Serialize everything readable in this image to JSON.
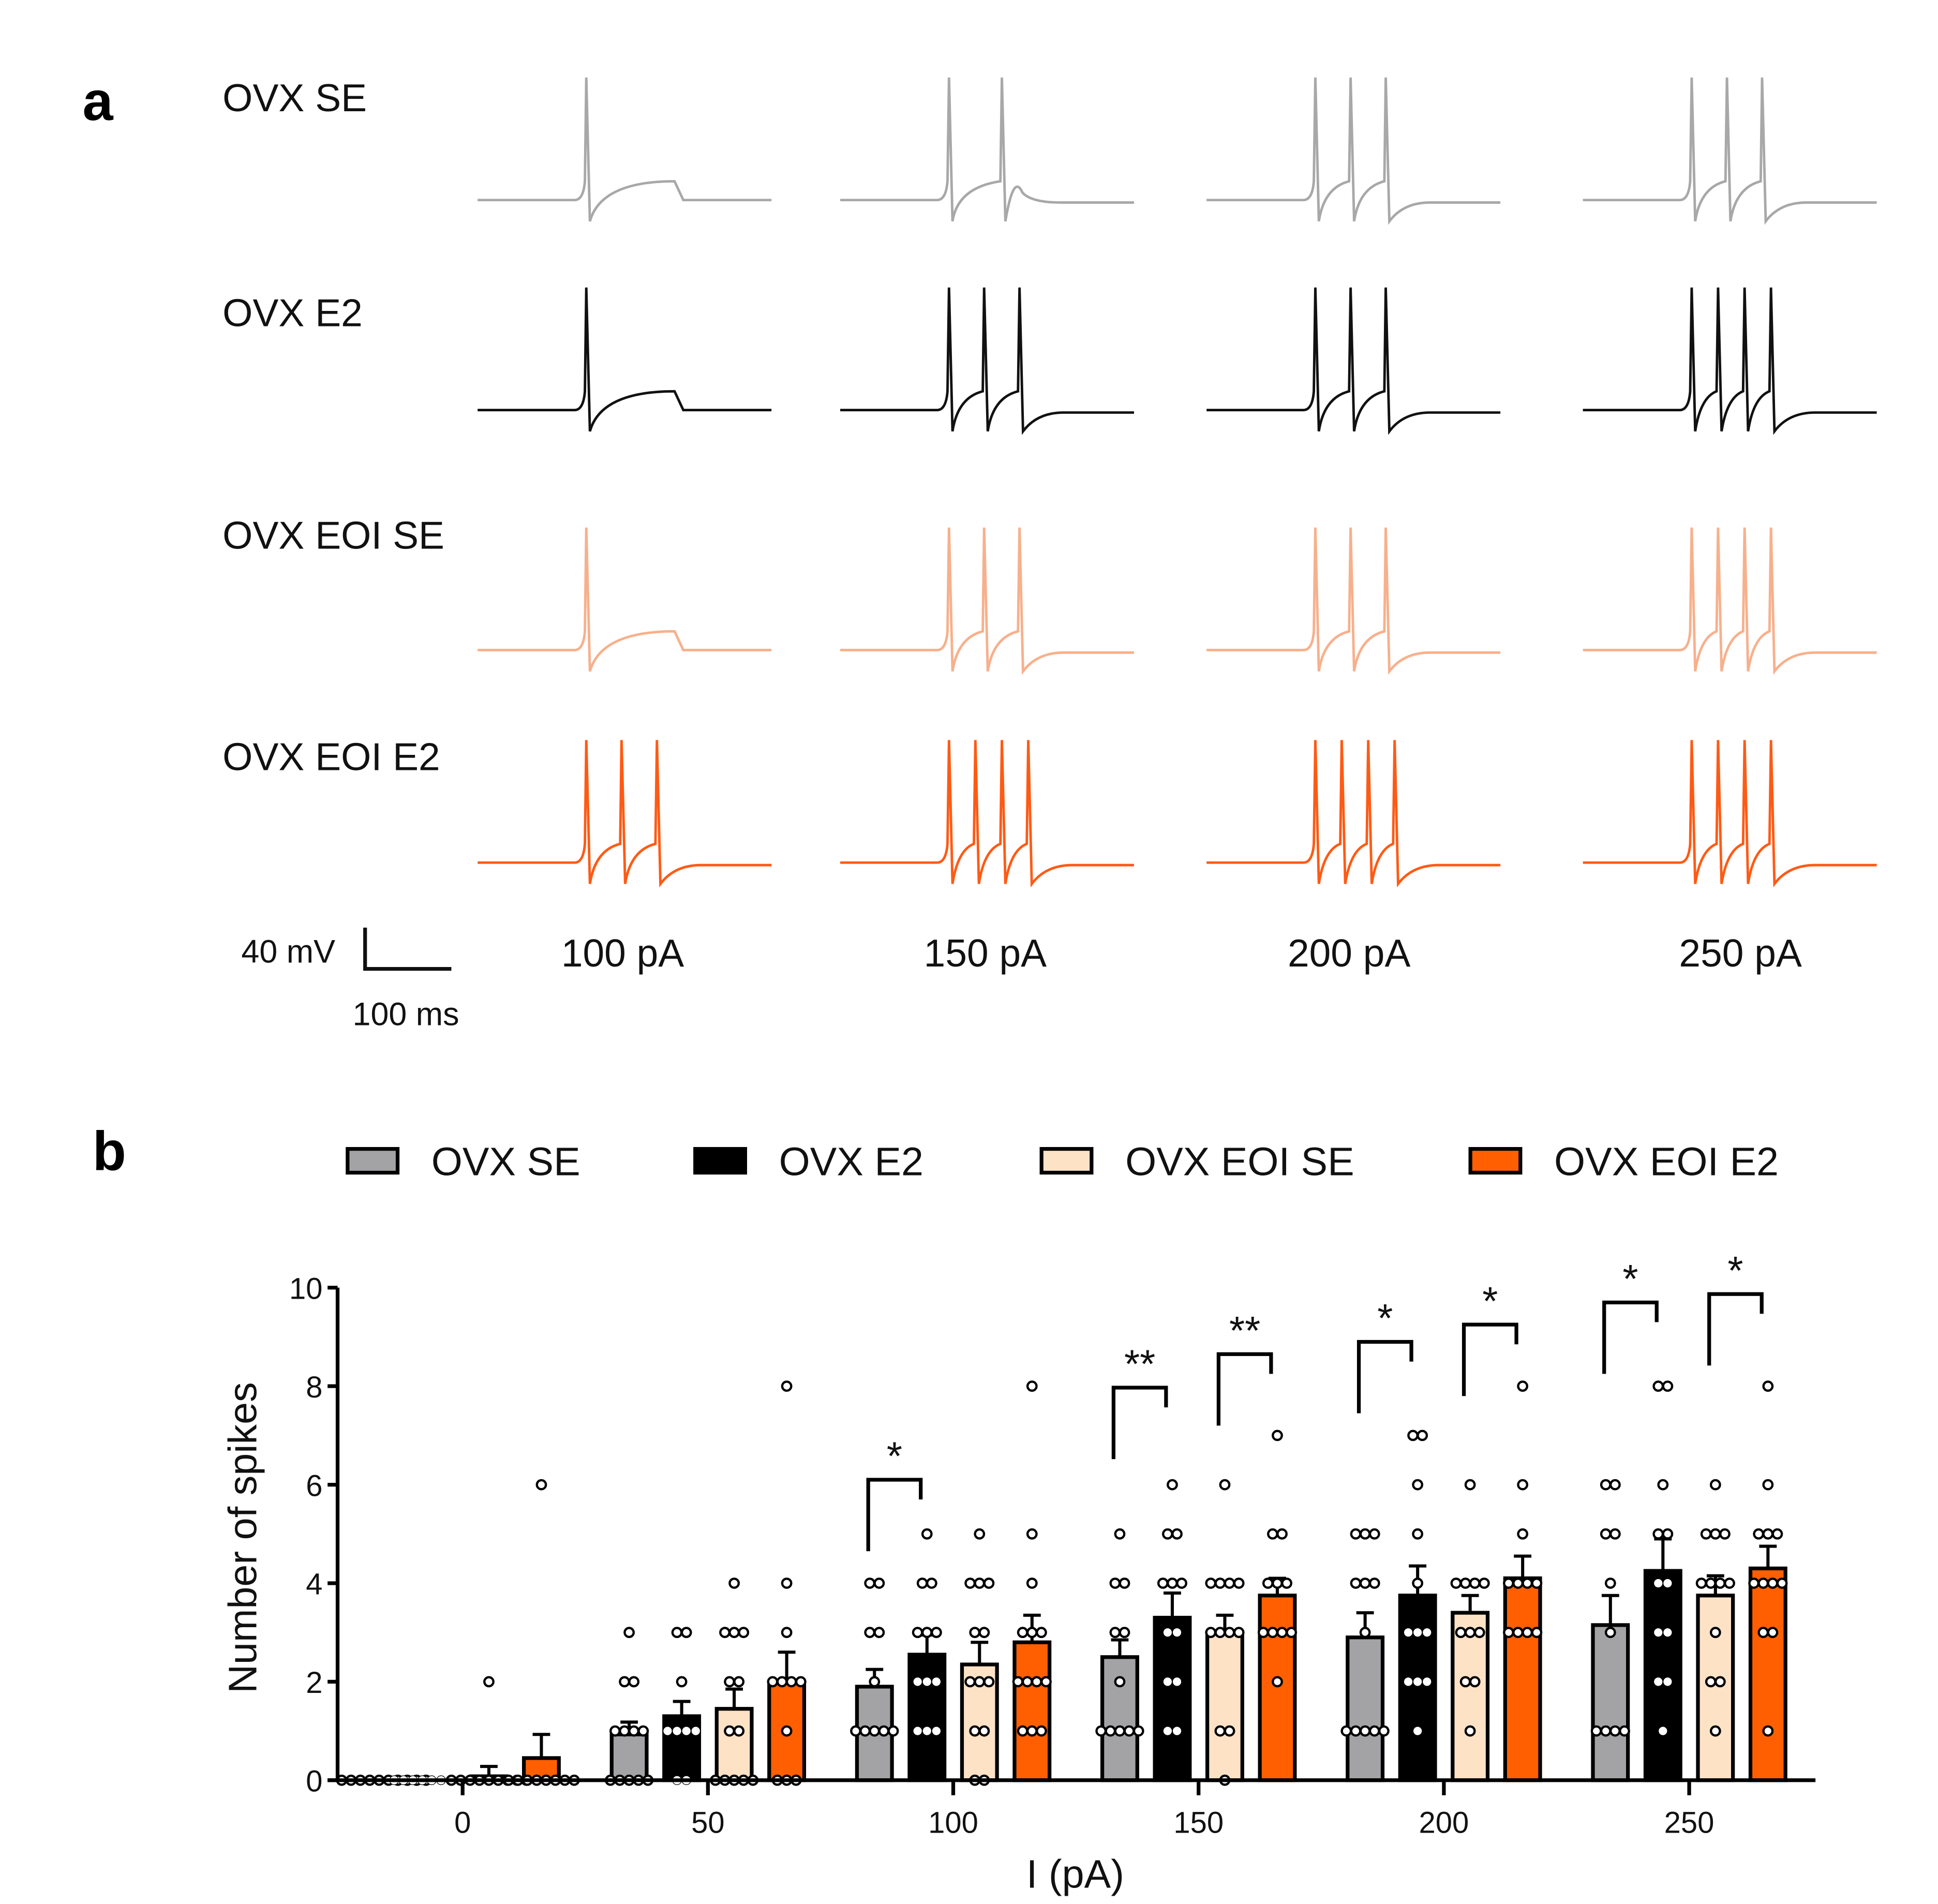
{
  "panel_a": {
    "label": "a",
    "rows": [
      {
        "name": "OVX SE",
        "color": "#a8a8a8",
        "spike_counts": [
          1,
          2,
          3,
          3
        ]
      },
      {
        "name": "OVX E2",
        "color": "#111111",
        "spike_counts": [
          1,
          3,
          3,
          4
        ]
      },
      {
        "name": "OVX EOI SE",
        "color": "#f7b08c",
        "spike_counts": [
          1,
          3,
          3,
          4
        ]
      },
      {
        "name": "OVX EOI E2",
        "color": "#ff5a14",
        "spike_counts": [
          3,
          4,
          4,
          4
        ]
      }
    ],
    "currents": [
      "100 pA",
      "150 pA",
      "200 pA",
      "250 pA"
    ],
    "scale_bar": {
      "voltage": "40 mV",
      "time": "100 ms"
    }
  },
  "chart_data": {
    "type": "bar",
    "panel_label": "b",
    "xlabel": "I (pA)",
    "ylabel": "Number of spikes",
    "ylim": [
      0,
      10
    ],
    "yticks": [
      "0",
      "2",
      "4",
      "6",
      "8",
      "10"
    ],
    "categories": [
      "0",
      "50",
      "100",
      "150",
      "200",
      "250"
    ],
    "legend_position": "top",
    "series": [
      {
        "name": "OVX SE",
        "color": "#a3a3a6",
        "values": [
          0,
          0.93,
          1.9,
          2.5,
          2.9,
          3.15
        ],
        "sem": [
          0,
          0.25,
          0.35,
          0.35,
          0.5,
          0.6
        ],
        "points": [
          [
            0,
            0,
            0,
            0,
            0,
            0,
            0,
            0,
            0,
            0
          ],
          [
            0,
            0,
            0,
            0,
            0,
            1,
            1,
            1,
            1,
            2,
            2,
            3
          ],
          [
            1,
            1,
            1,
            1,
            1,
            2,
            3,
            3,
            4,
            4
          ],
          [
            1,
            1,
            1,
            1,
            1,
            2,
            3,
            3,
            4,
            4,
            5
          ],
          [
            1,
            1,
            1,
            1,
            1,
            3,
            4,
            4,
            4,
            5,
            5,
            5
          ],
          [
            1,
            1,
            1,
            1,
            3,
            4,
            5,
            5,
            6,
            6
          ]
        ]
      },
      {
        "name": "OVX E2",
        "color": "#000000",
        "values": [
          0,
          1.3,
          2.55,
          3.3,
          3.75,
          4.25
        ],
        "sem": [
          0,
          0.3,
          0.4,
          0.5,
          0.6,
          0.65
        ],
        "points": [
          [
            0,
            0,
            0,
            0,
            0,
            0,
            0,
            0,
            0,
            0
          ],
          [
            0,
            0,
            1,
            1,
            1,
            1,
            2,
            3,
            3
          ],
          [
            1,
            1,
            1,
            2,
            2,
            2,
            3,
            3,
            3,
            4,
            4,
            5
          ],
          [
            1,
            1,
            2,
            2,
            3,
            3,
            4,
            4,
            4,
            5,
            5,
            6
          ],
          [
            1,
            2,
            2,
            2,
            3,
            3,
            3,
            4,
            5,
            6,
            7,
            7
          ],
          [
            1,
            2,
            2,
            3,
            3,
            4,
            4,
            5,
            5,
            6,
            8,
            8
          ]
        ]
      },
      {
        "name": "OVX EOI SE",
        "color": "#fde2c6",
        "values": [
          0.08,
          1.45,
          2.35,
          3.0,
          3.4,
          3.75
        ],
        "sem": [
          0.2,
          0.4,
          0.45,
          0.35,
          0.35,
          0.4
        ],
        "points": [
          [
            0,
            0,
            0,
            0,
            0,
            0,
            0,
            0,
            0,
            2
          ],
          [
            0,
            0,
            0,
            0,
            0,
            1,
            1,
            2,
            2,
            3,
            3,
            3,
            4
          ],
          [
            0,
            0,
            1,
            1,
            2,
            2,
            2,
            3,
            3,
            4,
            4,
            4,
            5
          ],
          [
            0,
            1,
            1,
            3,
            3,
            3,
            3,
            4,
            4,
            4,
            4,
            6
          ],
          [
            1,
            2,
            2,
            3,
            3,
            3,
            4,
            4,
            4,
            4,
            6
          ],
          [
            1,
            2,
            2,
            3,
            4,
            4,
            4,
            4,
            5,
            5,
            5,
            6
          ]
        ]
      },
      {
        "name": "OVX EOI E2",
        "color": "#ff5f00",
        "values": [
          0.45,
          2.0,
          2.8,
          3.75,
          4.1,
          4.3
        ],
        "sem": [
          0.48,
          0.6,
          0.55,
          0.35,
          0.45,
          0.45
        ],
        "points": [
          [
            0,
            0,
            0,
            0,
            0,
            0,
            0,
            0,
            6
          ],
          [
            0,
            0,
            0,
            1,
            2,
            2,
            2,
            2,
            3,
            4,
            8
          ],
          [
            1,
            1,
            1,
            2,
            2,
            2,
            2,
            3,
            3,
            3,
            4,
            5,
            8
          ],
          [
            2,
            3,
            3,
            3,
            3,
            4,
            4,
            4,
            5,
            5,
            7
          ],
          [
            3,
            3,
            3,
            3,
            4,
            4,
            4,
            4,
            5,
            6,
            8
          ],
          [
            1,
            3,
            3,
            4,
            4,
            4,
            4,
            5,
            5,
            5,
            6,
            8
          ]
        ]
      }
    ],
    "significance": [
      {
        "category": "100",
        "pair": [
          0,
          1
        ],
        "label": "*",
        "y": 6.1
      },
      {
        "category": "150",
        "pair": [
          0,
          1
        ],
        "label": "**",
        "y": 7.97
      },
      {
        "category": "150",
        "pair": [
          2,
          3
        ],
        "label": "**",
        "y": 8.65
      },
      {
        "category": "200",
        "pair": [
          0,
          1
        ],
        "label": "*",
        "y": 8.9
      },
      {
        "category": "200",
        "pair": [
          2,
          3
        ],
        "label": "*",
        "y": 9.25
      },
      {
        "category": "250",
        "pair": [
          0,
          1
        ],
        "label": "*",
        "y": 9.7
      },
      {
        "category": "250",
        "pair": [
          2,
          3
        ],
        "label": "*",
        "y": 9.87
      }
    ]
  }
}
